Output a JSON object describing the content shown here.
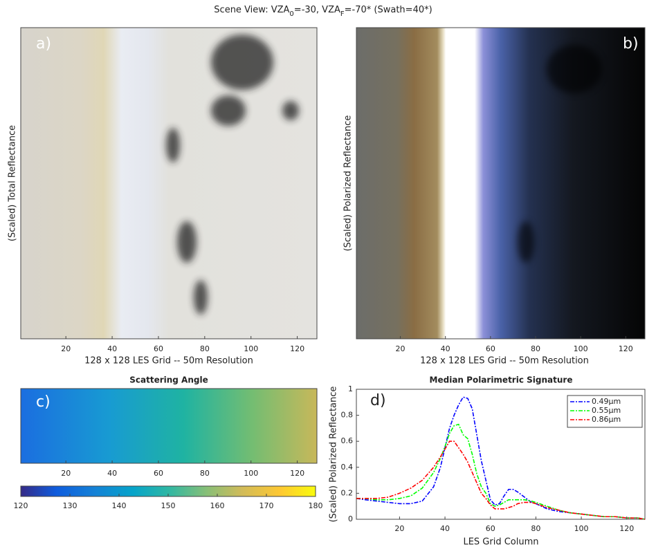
{
  "title": [
    "Scene View: VZA",
    "0",
    "=-30,   VZA",
    "F",
    "=-70* (Swath=40*)"
  ],
  "chart_data": [
    {
      "type": "image",
      "label": "a)",
      "ylabel": "(Scaled) Total Reflectance",
      "xlabel": "128 x 128 LES Grid -- 50m Resolution",
      "xlim": [
        0.5,
        128.5
      ],
      "xticks": [
        20,
        40,
        60,
        80,
        100,
        120
      ]
    },
    {
      "type": "image",
      "label": "b)",
      "ylabel": "(Scaled) Polarized Reflectance",
      "xlabel": "128 x 128 LES Grid -- 50m Resolution",
      "xlim": [
        0.5,
        128.5
      ],
      "xticks": [
        20,
        40,
        60,
        80,
        100,
        120
      ]
    },
    {
      "type": "heatmap",
      "title": "Scattering Angle",
      "label": "c)",
      "xlim": [
        0.5,
        128.5
      ],
      "xticks": [
        20,
        40,
        60,
        80,
        100,
        120
      ],
      "colorbar_lim": [
        120,
        180
      ],
      "colorbar_ticks": [
        120,
        130,
        140,
        150,
        160,
        170,
        180
      ]
    },
    {
      "type": "line",
      "title": "Median Polarimetric Signature",
      "label": "d)",
      "xlabel": "LES Grid Column",
      "ylabel": "(Scaled) Polarized Reflectance",
      "xlim": [
        1,
        128
      ],
      "xticks": [
        20,
        40,
        60,
        80,
        100,
        120
      ],
      "ylim": [
        0,
        1
      ],
      "yticks": [
        0,
        0.2,
        0.4,
        0.6,
        0.8,
        1
      ],
      "x": [
        1,
        5,
        10,
        15,
        20,
        25,
        30,
        35,
        38,
        40,
        42,
        44,
        46,
        48,
        50,
        52,
        54,
        56,
        58,
        60,
        62,
        64,
        66,
        68,
        70,
        72,
        75,
        78,
        80,
        85,
        90,
        95,
        100,
        105,
        110,
        115,
        120,
        125,
        128
      ],
      "series": [
        {
          "name": "0.49μm",
          "color": "#0000ff",
          "values": [
            0.16,
            0.15,
            0.14,
            0.13,
            0.12,
            0.12,
            0.14,
            0.25,
            0.4,
            0.55,
            0.7,
            0.8,
            0.88,
            0.94,
            0.93,
            0.85,
            0.65,
            0.45,
            0.3,
            0.15,
            0.11,
            0.12,
            0.18,
            0.23,
            0.23,
            0.21,
            0.17,
            0.13,
            0.12,
            0.08,
            0.06,
            0.05,
            0.04,
            0.03,
            0.02,
            0.02,
            0.01,
            0.01,
            0.0
          ]
        },
        {
          "name": "0.55μm",
          "color": "#00ff00",
          "values": [
            0.16,
            0.16,
            0.15,
            0.15,
            0.16,
            0.18,
            0.24,
            0.36,
            0.47,
            0.56,
            0.66,
            0.72,
            0.73,
            0.65,
            0.62,
            0.5,
            0.35,
            0.25,
            0.2,
            0.12,
            0.1,
            0.11,
            0.13,
            0.15,
            0.15,
            0.15,
            0.15,
            0.14,
            0.13,
            0.1,
            0.07,
            0.05,
            0.04,
            0.03,
            0.02,
            0.02,
            0.01,
            0.01,
            0.0
          ]
        },
        {
          "name": "0.86μm",
          "color": "#ff0000",
          "values": [
            0.16,
            0.16,
            0.16,
            0.17,
            0.2,
            0.24,
            0.3,
            0.4,
            0.48,
            0.54,
            0.6,
            0.6,
            0.55,
            0.5,
            0.44,
            0.36,
            0.28,
            0.2,
            0.16,
            0.11,
            0.08,
            0.08,
            0.08,
            0.09,
            0.1,
            0.12,
            0.13,
            0.13,
            0.12,
            0.09,
            0.07,
            0.05,
            0.04,
            0.03,
            0.02,
            0.02,
            0.01,
            0.01,
            0.0
          ]
        }
      ]
    }
  ]
}
